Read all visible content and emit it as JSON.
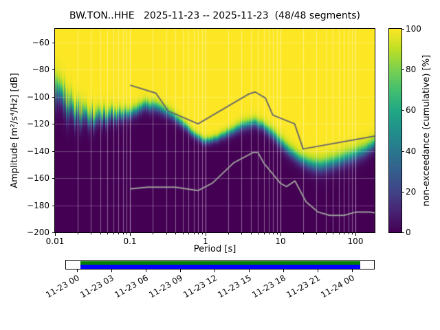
{
  "title": "BW.TON..HHE   2025-11-23 -- 2025-11-23  (48/48 segments)",
  "axes": {
    "xlabel": "Period [s]",
    "ylabel": "Amplitude [m²/s⁴/Hz] [dB]",
    "xticks": [
      0.01,
      0.1,
      1,
      10,
      100
    ],
    "yticks": [
      -60,
      -80,
      -100,
      -120,
      -140,
      -160,
      -180,
      -200
    ],
    "xlim": [
      0.01,
      179
    ],
    "ylim": [
      -200,
      -50
    ]
  },
  "colorbar": {
    "label": "non-exceedance (cumulative) [%]",
    "ticks": [
      0,
      20,
      40,
      60,
      80,
      100
    ],
    "lim": [
      0,
      100
    ]
  },
  "timeline": {
    "labels": [
      "11-23 00",
      "11-23 03",
      "11-23 06",
      "11-23 09",
      "11-23 12",
      "11-23 15",
      "11-23 18",
      "11-23 21",
      "11-24 00"
    ],
    "psd_coverage_color": "#0000ff",
    "data_coverage_color": "#008000"
  },
  "chart_data": {
    "type": "heatmap",
    "title": "BW.TON..HHE   2025-11-23 -- 2025-11-23  (48/48 segments)",
    "xlabel": "Period [s]",
    "ylabel": "Amplitude [m2/s4/Hz] [dB]",
    "colorbar_label": "non-exceedance (cumulative) [%]",
    "x_scale": "log",
    "xlim": [
      0.01,
      179
    ],
    "ylim": [
      -200,
      -50
    ],
    "clim": [
      0,
      100
    ],
    "colormap": "viridis",
    "grid_color": "#ffffff",
    "viridis_stops": [
      "#440154",
      "#482475",
      "#414487",
      "#355f8d",
      "#2a788e",
      "#21918c",
      "#22a884",
      "#44bf70",
      "#7ad151",
      "#bddf26",
      "#fde725"
    ],
    "cumulative_boundary": {
      "note": "center_db = amplitude where non-exceedance = 50% per period; width_db = 5%-95% transition width",
      "periods": [
        0.01,
        0.015,
        0.022,
        0.033,
        0.05,
        0.07,
        0.1,
        0.15,
        0.22,
        0.33,
        0.5,
        0.7,
        1.0,
        1.4,
        2.0,
        3.0,
        4.5,
        6.0,
        8.0,
        12,
        18,
        25,
        35,
        50,
        70,
        100,
        140,
        179
      ],
      "center_db": [
        -98,
        -106,
        -112,
        -116,
        -115,
        -114,
        -112,
        -107,
        -107,
        -112,
        -120,
        -128,
        -133,
        -131,
        -127,
        -122,
        -119,
        -122,
        -128,
        -138,
        -146,
        -150,
        -151,
        -149,
        -146,
        -143,
        -139,
        -135
      ],
      "width_db": [
        20,
        17,
        14,
        12,
        11,
        10,
        9,
        9,
        9,
        8,
        7,
        6,
        6,
        6,
        7,
        8,
        8,
        8,
        9,
        10,
        10,
        11,
        12,
        12,
        12,
        12,
        11,
        10
      ]
    },
    "jitter": {
      "periods": [
        0.01,
        0.025,
        0.06,
        0.12,
        0.3,
        179
      ],
      "amp_db": [
        8,
        6,
        3,
        1.5,
        0.5,
        0.4
      ]
    },
    "noise_models": {
      "nhnm_color": "#6a6a6a",
      "nlnm_color": "#9c9c9c",
      "nhnm": {
        "periods": [
          0.1,
          0.22,
          0.32,
          0.8,
          3.8,
          4.6,
          6.3,
          7.9,
          15.4,
          20,
          179
        ],
        "db": [
          -91.5,
          -97.4,
          -110.5,
          -120.0,
          -98.0,
          -96.5,
          -101.0,
          -113.5,
          -120.0,
          -138.5,
          -129.0
        ]
      },
      "nlnm": {
        "periods": [
          0.1,
          0.17,
          0.4,
          0.8,
          1.24,
          2.4,
          4.3,
          5.0,
          6.0,
          10.0,
          12.0,
          15.6,
          21.9,
          31.6,
          45.0,
          70.0,
          101.0,
          154.0,
          179.0
        ],
        "db": [
          -168.0,
          -166.7,
          -166.7,
          -169.2,
          -163.7,
          -148.6,
          -141.1,
          -141.1,
          -149.0,
          -163.8,
          -166.2,
          -162.1,
          -177.5,
          -185.0,
          -187.5,
          -187.5,
          -185.0,
          -185.0,
          -185.5
        ]
      }
    }
  }
}
